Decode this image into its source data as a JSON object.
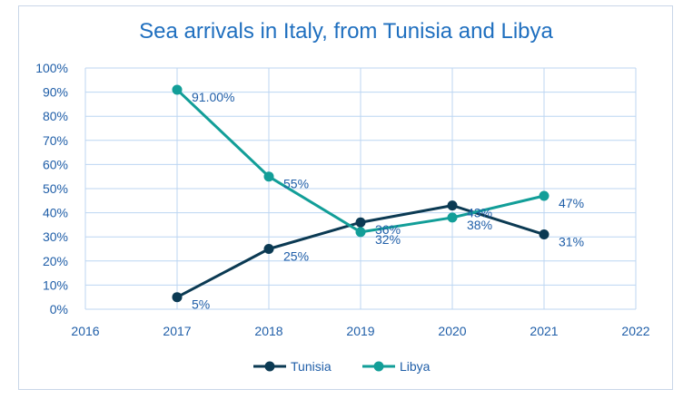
{
  "chart_data": {
    "type": "line",
    "title": "Sea arrivals in Italy, from Tunisia and Libya",
    "xlabel": "",
    "ylabel": "",
    "xlim": [
      2016,
      2022
    ],
    "ylim": [
      0,
      100
    ],
    "x_ticks": [
      "2016",
      "2017",
      "2018",
      "2019",
      "2020",
      "2021",
      "2022"
    ],
    "y_ticks": [
      "0%",
      "10%",
      "20%",
      "30%",
      "40%",
      "50%",
      "60%",
      "70%",
      "80%",
      "90%",
      "100%"
    ],
    "grid": true,
    "legend_position": "bottom",
    "series": [
      {
        "name": "Tunisia",
        "color": "#0b3a53",
        "x": [
          2017,
          2018,
          2019,
          2020,
          2021
        ],
        "values": [
          5,
          25,
          36,
          43,
          31
        ],
        "labels": [
          "5%",
          "25%",
          "36%",
          "43%",
          "31%"
        ]
      },
      {
        "name": "Libya",
        "color": "#129e98",
        "x": [
          2017,
          2018,
          2019,
          2020,
          2021
        ],
        "values": [
          91,
          55,
          32,
          38,
          47
        ],
        "labels": [
          "91.00%",
          "55%",
          "32%",
          "38%",
          "47%"
        ]
      }
    ]
  }
}
